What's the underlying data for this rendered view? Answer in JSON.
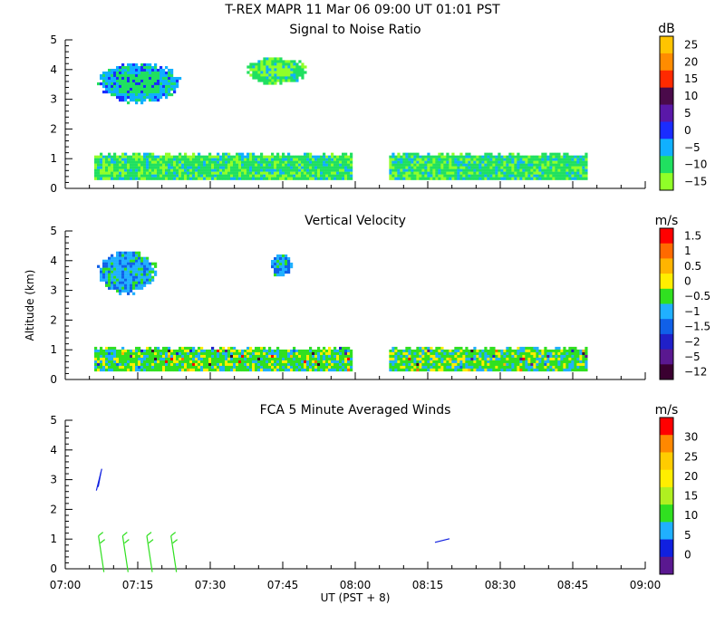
{
  "figure": {
    "title": "T-REX   MAPR 11 Mar 06   09:00 UT   01:01   PST",
    "ylabel": "Altitude (km)",
    "xlabel": "UT  (PST + 8)",
    "x_ticks": [
      "07:00",
      "07:15",
      "07:30",
      "07:45",
      "08:00",
      "08:15",
      "08:30",
      "08:45",
      "09:00"
    ],
    "y_ticks": [
      "0",
      "1",
      "2",
      "3",
      "4",
      "5"
    ]
  },
  "chart_data": [
    {
      "type": "heatmap",
      "title": "Signal to Noise Ratio",
      "xlabel": "UT  (PST + 8)",
      "ylabel": "Altitude (km)",
      "xlim": [
        "07:00",
        "09:00"
      ],
      "ylim": [
        0,
        5
      ],
      "colorbar": {
        "unit": "dB",
        "labels": [
          "25",
          "20",
          "15",
          "10",
          "5",
          "0",
          "−5",
          "−10",
          "−15"
        ],
        "colors": [
          "#ffc400",
          "#ff8c00",
          "#ff2a00",
          "#4a0a4a",
          "#5a18a8",
          "#1a2cff",
          "#10b0ff",
          "#20e060",
          "#90ff28"
        ]
      },
      "features": [
        {
          "name": "upper layer",
          "x": [
            "07:06",
            "07:24"
          ],
          "y": [
            2.9,
            4.3
          ],
          "value_db": -5
        },
        {
          "name": "upper patch",
          "x": [
            "07:37",
            "07:50"
          ],
          "y": [
            3.5,
            4.5
          ],
          "value_db": -10
        },
        {
          "name": "boundary layer",
          "x": [
            "07:06",
            "07:59"
          ],
          "y": [
            0.3,
            1.2
          ],
          "value_db": -10
        },
        {
          "name": "boundary layer",
          "x": [
            "08:07",
            "08:48"
          ],
          "y": [
            0.3,
            1.2
          ],
          "value_db": -10
        }
      ]
    },
    {
      "type": "heatmap",
      "title": "Vertical Velocity",
      "xlabel": "UT  (PST + 8)",
      "ylabel": "Altitude (km)",
      "xlim": [
        "07:00",
        "09:00"
      ],
      "ylim": [
        0,
        5
      ],
      "colorbar": {
        "unit": "m/s",
        "labels": [
          "1.5",
          "1",
          "0.5",
          "0",
          "−0.5",
          "−1",
          "−1.5",
          "−2",
          "−5",
          "−12"
        ],
        "colors": [
          "#ff0000",
          "#ff6a00",
          "#ffb400",
          "#ffee00",
          "#30e020",
          "#20b0ff",
          "#1060e8",
          "#2020c8",
          "#5a1890",
          "#3a0030"
        ]
      },
      "features": [
        {
          "name": "upper layer",
          "x": [
            "07:06",
            "07:19"
          ],
          "y": [
            2.9,
            4.4
          ],
          "value_ms": -1
        },
        {
          "name": "upper patch",
          "x": [
            "07:42",
            "07:47"
          ],
          "y": [
            3.5,
            4.3
          ],
          "value_ms": -1
        },
        {
          "name": "boundary layer",
          "x": [
            "07:06",
            "07:59"
          ],
          "y": [
            0.3,
            1.1
          ],
          "value_ms": -0.5
        },
        {
          "name": "boundary layer",
          "x": [
            "08:07",
            "08:48"
          ],
          "y": [
            0.3,
            1.1
          ],
          "value_ms": -0.5
        }
      ]
    },
    {
      "type": "scatter",
      "title": "FCA 5 Minute Averaged Winds",
      "xlabel": "UT  (PST + 8)",
      "ylabel": "Altitude (km)",
      "xlim": [
        "07:00",
        "09:00"
      ],
      "ylim": [
        0,
        5
      ],
      "colorbar": {
        "unit": "m/s",
        "labels": [
          "30",
          "25",
          "20",
          "15",
          "10",
          "5",
          "0"
        ],
        "colors": [
          "#ff0000",
          "#ff8800",
          "#ffcc00",
          "#ffee00",
          "#b0f020",
          "#30e020",
          "#20b0ff",
          "#1020e0",
          "#5a1890"
        ]
      },
      "barbs": [
        {
          "time": "07:07",
          "alt": 3.0,
          "speed_ms": 3
        },
        {
          "time": "07:08",
          "alt": 0.5,
          "speed_ms": 12
        },
        {
          "time": "07:13",
          "alt": 0.5,
          "speed_ms": 12
        },
        {
          "time": "07:18",
          "alt": 0.5,
          "speed_ms": 12
        },
        {
          "time": "07:23",
          "alt": 0.5,
          "speed_ms": 12
        },
        {
          "time": "08:18",
          "alt": 0.95,
          "speed_ms": 2
        }
      ]
    }
  ]
}
